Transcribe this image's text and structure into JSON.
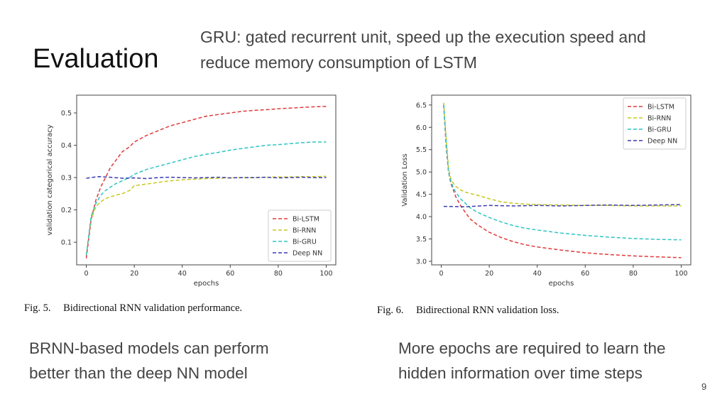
{
  "slide": {
    "title": "Evaluation",
    "gru_note_line1": "GRU: gated recurrent unit, speed up the execution speed and",
    "gru_note_line2": "reduce memory consumption of LSTM",
    "left_note_line1": "BRNN-based models can perform",
    "left_note_line2": "better than the deep NN model",
    "right_note_line1": "More epochs are required to learn the",
    "right_note_line2": "hidden information over time steps",
    "page_number": "9"
  },
  "captions": {
    "fig5_num": "Fig. 5.",
    "fig5_text": "Bidirectional RNN validation performance.",
    "fig6_num": "Fig. 6.",
    "fig6_text": "Bidirectional RNN validation loss."
  },
  "chart_data": [
    {
      "id": "acc",
      "type": "line",
      "xlabel": "epochs",
      "ylabel": "validation categorical accuracy",
      "xlim": [
        -4,
        104
      ],
      "ylim": [
        0.03,
        0.555
      ],
      "xticks": [
        0,
        20,
        40,
        60,
        80,
        100
      ],
      "xtick_labels": [
        "0",
        "20",
        "40",
        "60",
        "80",
        "100"
      ],
      "yticks": [
        0.1,
        0.2,
        0.3,
        0.4,
        0.5
      ],
      "ytick_labels": [
        "0.1",
        "0.2",
        "0.3",
        "0.4",
        "0.5"
      ],
      "legend_position": "lower-right",
      "series": [
        {
          "name": "Bi-LSTM",
          "color": "#e03a3a",
          "x": [
            0,
            2,
            4,
            6,
            8,
            10,
            12,
            15,
            18,
            20,
            25,
            30,
            35,
            40,
            45,
            50,
            55,
            60,
            65,
            70,
            75,
            80,
            85,
            90,
            95,
            100
          ],
          "y": [
            0.05,
            0.17,
            0.23,
            0.27,
            0.3,
            0.33,
            0.35,
            0.38,
            0.395,
            0.41,
            0.43,
            0.445,
            0.46,
            0.47,
            0.48,
            0.49,
            0.495,
            0.5,
            0.505,
            0.508,
            0.51,
            0.513,
            0.515,
            0.517,
            0.519,
            0.52
          ]
        },
        {
          "name": "Bi-RNN",
          "color": "#c8c820",
          "x": [
            0,
            2,
            4,
            6,
            8,
            10,
            12,
            15,
            18,
            20,
            25,
            30,
            35,
            40,
            45,
            50,
            55,
            60,
            65,
            70,
            75,
            80,
            85,
            90,
            95,
            100
          ],
          "y": [
            0.06,
            0.17,
            0.21,
            0.225,
            0.235,
            0.24,
            0.245,
            0.25,
            0.26,
            0.275,
            0.28,
            0.285,
            0.29,
            0.293,
            0.295,
            0.297,
            0.298,
            0.299,
            0.3,
            0.3,
            0.301,
            0.302,
            0.302,
            0.303,
            0.303,
            0.304
          ]
        },
        {
          "name": "Bi-GRU",
          "color": "#2ec4c4",
          "x": [
            0,
            2,
            4,
            6,
            8,
            10,
            12,
            15,
            18,
            20,
            25,
            30,
            35,
            40,
            45,
            50,
            55,
            60,
            65,
            70,
            75,
            80,
            85,
            90,
            95,
            100
          ],
          "y": [
            0.06,
            0.18,
            0.22,
            0.245,
            0.26,
            0.27,
            0.28,
            0.29,
            0.3,
            0.31,
            0.325,
            0.335,
            0.345,
            0.355,
            0.365,
            0.372,
            0.378,
            0.385,
            0.39,
            0.395,
            0.4,
            0.402,
            0.405,
            0.408,
            0.41,
            0.41
          ]
        },
        {
          "name": "Deep NN",
          "color": "#3a3ab0",
          "x": [
            0,
            5,
            10,
            15,
            20,
            25,
            30,
            35,
            40,
            45,
            50,
            55,
            60,
            65,
            70,
            75,
            80,
            85,
            90,
            95,
            100
          ],
          "y": [
            0.298,
            0.303,
            0.301,
            0.298,
            0.299,
            0.297,
            0.3,
            0.301,
            0.3,
            0.299,
            0.3,
            0.301,
            0.299,
            0.3,
            0.3,
            0.301,
            0.299,
            0.3,
            0.301,
            0.3,
            0.3
          ]
        }
      ]
    },
    {
      "id": "loss",
      "type": "line",
      "xlabel": "epochs",
      "ylabel": "Validation Loss",
      "xlim": [
        -4,
        104
      ],
      "ylim": [
        2.92,
        6.72
      ],
      "xticks": [
        0,
        20,
        40,
        60,
        80,
        100
      ],
      "xtick_labels": [
        "0",
        "20",
        "40",
        "60",
        "80",
        "100"
      ],
      "yticks": [
        3.0,
        3.5,
        4.0,
        4.5,
        5.0,
        5.5,
        6.0,
        6.5
      ],
      "ytick_labels": [
        "3.0",
        "3.5",
        "4.0",
        "4.5",
        "5.0",
        "5.5",
        "6.0",
        "6.5"
      ],
      "legend_position": "top-right",
      "series": [
        {
          "name": "Bi-LSTM",
          "color": "#e03a3a",
          "x": [
            1,
            2,
            3,
            4,
            5,
            6,
            8,
            10,
            12,
            15,
            20,
            25,
            30,
            35,
            40,
            50,
            60,
            70,
            80,
            90,
            100
          ],
          "y": [
            6.5,
            5.6,
            5.0,
            4.75,
            4.6,
            4.45,
            4.25,
            4.1,
            3.95,
            3.82,
            3.65,
            3.53,
            3.44,
            3.37,
            3.32,
            3.25,
            3.19,
            3.15,
            3.12,
            3.1,
            3.08
          ]
        },
        {
          "name": "Bi-RNN",
          "color": "#c8c820",
          "x": [
            1,
            2,
            3,
            4,
            5,
            6,
            8,
            10,
            12,
            15,
            20,
            25,
            30,
            35,
            40,
            50,
            60,
            70,
            80,
            90,
            100
          ],
          "y": [
            6.55,
            5.8,
            5.1,
            4.85,
            4.75,
            4.68,
            4.6,
            4.55,
            4.52,
            4.48,
            4.4,
            4.33,
            4.3,
            4.28,
            4.27,
            4.26,
            4.25,
            4.25,
            4.24,
            4.24,
            4.24
          ]
        },
        {
          "name": "Bi-GRU",
          "color": "#2ec4c4",
          "x": [
            1,
            2,
            3,
            4,
            5,
            6,
            8,
            10,
            12,
            15,
            20,
            25,
            30,
            35,
            40,
            50,
            60,
            70,
            80,
            90,
            100
          ],
          "y": [
            6.5,
            5.7,
            5.0,
            4.8,
            4.65,
            4.55,
            4.4,
            4.3,
            4.2,
            4.1,
            3.98,
            3.88,
            3.8,
            3.74,
            3.7,
            3.63,
            3.58,
            3.54,
            3.51,
            3.49,
            3.48
          ]
        },
        {
          "name": "Deep NN",
          "color": "#3a3ab0",
          "x": [
            1,
            10,
            20,
            30,
            40,
            50,
            60,
            70,
            80,
            90,
            100
          ],
          "y": [
            4.23,
            4.22,
            4.25,
            4.24,
            4.25,
            4.24,
            4.25,
            4.26,
            4.25,
            4.26,
            4.27
          ]
        }
      ]
    }
  ]
}
